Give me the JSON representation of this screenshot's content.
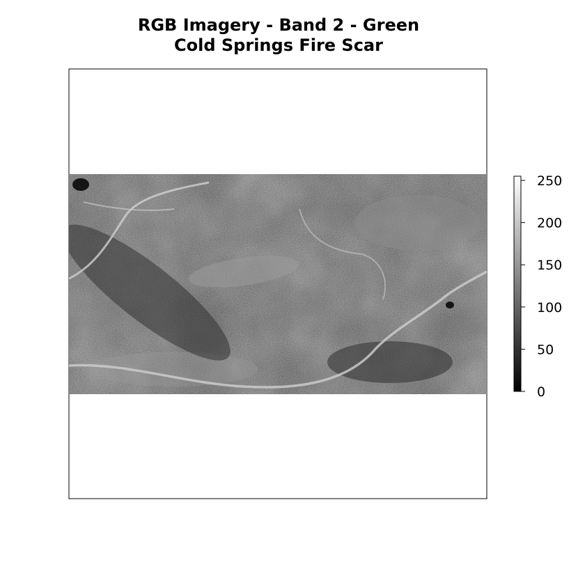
{
  "chart_data": {
    "type": "heatmap",
    "title": "RGB Imagery - Band 2 - Green",
    "subtitle": "Cold Springs Fire Scar",
    "xlabel": "",
    "ylabel": "",
    "colormap": [
      "#000000",
      "#ffffff"
    ],
    "colorbar": {
      "range": [
        0,
        255
      ],
      "ticks": [
        "0",
        "50",
        "100",
        "150",
        "200",
        "250"
      ],
      "tick_values": [
        0,
        50,
        100,
        150,
        200,
        250
      ]
    },
    "grid": false,
    "legend_placement": "right"
  },
  "colors": {
    "frame": "#000000",
    "background": "#ffffff"
  }
}
